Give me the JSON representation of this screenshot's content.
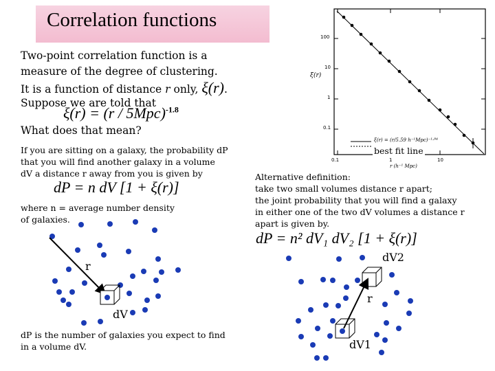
{
  "title": "Correlation functions",
  "intro": {
    "line1": "Two-point correlation function is a",
    "line2": "measure of the degree of clustering.",
    "line3_a": "It is a function of distance ",
    "line3_r": "r",
    "line3_b": " only, ",
    "line3_xi": "ξ(r)",
    "line3_period": ".",
    "line4": "Suppose we are told that",
    "equation": "ξ(r) = (r / 5Mpc)",
    "equation_exp": "-1.8",
    "question": "What does that mean?"
  },
  "left_text": {
    "para1_line1": "If you are sitting on a galaxy, the probability dP",
    "para1_line2": "that you will find another galaxy in a volume",
    "para1_line3": "dV a distance r away from you is given by",
    "formula": "dP = n dV [1 + ξ(r)]",
    "para2_line1": "where n = average number density",
    "para2_line2": "of galaxies.",
    "footer_line1": "dP is the number of galaxies you expect to find",
    "footer_line2": "in a volume dV."
  },
  "right_text": {
    "line1": "Alternative definition:",
    "line2": "take two small volumes distance r apart;",
    "line3": "the joint probability that you will find a galaxy",
    "line4": "in either one of the two dV volumes  a distance r",
    "line5": "apart is given by.",
    "formula": "dP = n² dV₁ dV₂ [1 + ξ(r)]"
  },
  "plot": {
    "ylabel": "ξ(r)",
    "xlabel": "r  (h⁻¹ Mpc)",
    "y_ticks": [
      "100",
      "10",
      "1",
      "0.1"
    ],
    "x_ticks": [
      "0.1",
      "1",
      "10"
    ],
    "legend_text": "ξ(r) = (r/5.59 h⁻¹Mpc)⁻¹·⁸⁴",
    "fit_label": "best fit line"
  },
  "diagram_left": {
    "r_label": "r",
    "dv_label": "dV"
  },
  "diagram_right": {
    "r_label": "r",
    "dv1_label": "dV1",
    "dv2_label": "dV2"
  }
}
